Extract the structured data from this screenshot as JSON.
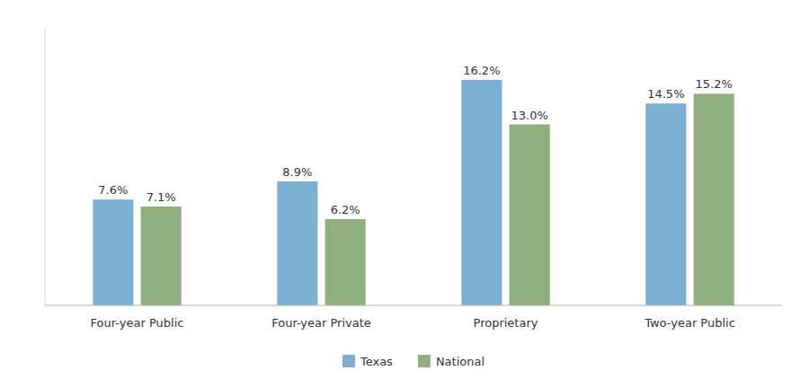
{
  "chart_data": {
    "type": "bar",
    "categories": [
      "Four-year Public",
      "Four-year Private",
      "Proprietary",
      "Two-year Public"
    ],
    "series": [
      {
        "name": "Texas",
        "color": "#7BAFD4",
        "values": [
          7.6,
          8.9,
          16.2,
          14.5
        ],
        "value_labels": [
          "7.6%",
          "8.9%",
          "16.2%",
          "14.5%"
        ]
      },
      {
        "name": "National",
        "color": "#8FAF7E",
        "values": [
          7.1,
          6.2,
          13.0,
          15.2
        ],
        "value_labels": [
          "7.1%",
          "6.2%",
          "13.0%",
          "15.2%"
        ]
      }
    ],
    "ylim": [
      0,
      20
    ],
    "grid": false,
    "legend": "bottom",
    "data_labels": true,
    "tick_labels": "x"
  }
}
